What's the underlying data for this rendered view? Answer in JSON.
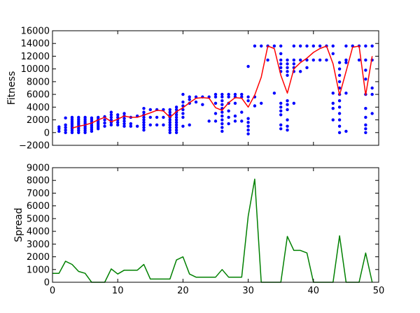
{
  "chart_data": [
    {
      "type": "scatter",
      "ylabel": "Fitness",
      "xlabel": "",
      "xlim": [
        0,
        50
      ],
      "ylim": [
        -2000,
        16000
      ],
      "yticks": [
        -2000,
        0,
        2000,
        4000,
        6000,
        8000,
        10000,
        12000,
        14000,
        16000
      ],
      "ytick_labels": [
        "−2000",
        "0",
        "2000",
        "4000",
        "6000",
        "8000",
        "10000",
        "12000",
        "14000",
        "16000"
      ],
      "grid": false,
      "colors": {
        "scatter": "#0000ff",
        "line": "#ff0000"
      },
      "scatter_columns": [
        {
          "x": 1,
          "values": [
            200,
            600,
            900
          ]
        },
        {
          "x": 2,
          "values": [
            0,
            400,
            800,
            1200,
            2300
          ]
        },
        {
          "x": 3,
          "values": [
            0,
            300,
            600,
            900,
            1200,
            1500,
            1800,
            2100,
            2400
          ]
        },
        {
          "x": 4,
          "values": [
            0,
            300,
            600,
            900,
            1200,
            1500,
            1800,
            2100,
            2400
          ]
        },
        {
          "x": 5,
          "values": [
            0,
            300,
            600,
            900,
            1200,
            1500,
            1800,
            2100,
            2400
          ]
        },
        {
          "x": 6,
          "values": [
            200,
            500,
            800,
            1100,
            1400,
            1700,
            2000,
            2300
          ]
        },
        {
          "x": 7,
          "values": [
            600,
            900,
            1200,
            1500,
            1800,
            2100,
            2400
          ]
        },
        {
          "x": 8,
          "values": [
            1000,
            1500,
            2000,
            2500
          ]
        },
        {
          "x": 9,
          "values": [
            1200,
            1600,
            2000,
            2400,
            2800,
            3200
          ]
        },
        {
          "x": 10,
          "values": [
            1200,
            1600,
            2000,
            2400,
            2800
          ]
        },
        {
          "x": 11,
          "values": [
            1000,
            1400,
            1800,
            2200,
            2600,
            3000
          ]
        },
        {
          "x": 12,
          "values": [
            1000,
            1400,
            2400
          ]
        },
        {
          "x": 13,
          "values": [
            1000,
            2600
          ]
        },
        {
          "x": 14,
          "values": [
            400,
            800,
            1200,
            1600,
            2000,
            2400,
            2800,
            3200,
            3800
          ]
        },
        {
          "x": 15,
          "values": [
            1200,
            2400,
            3600
          ]
        },
        {
          "x": 16,
          "values": [
            1200,
            2400,
            3600
          ]
        },
        {
          "x": 17,
          "values": [
            1200,
            2400,
            3600
          ]
        },
        {
          "x": 18,
          "values": [
            0,
            400,
            800,
            1200,
            1600,
            2000,
            2400,
            2800,
            3200,
            3600
          ]
        },
        {
          "x": 19,
          "values": [
            0,
            400,
            800,
            1200,
            1600,
            2000,
            2400,
            2800,
            3200,
            3600,
            4000
          ]
        },
        {
          "x": 20,
          "values": [
            1000,
            2400,
            3000,
            3600,
            4200,
            4800,
            6000
          ]
        },
        {
          "x": 21,
          "values": [
            1200,
            4600,
            5200,
            5600
          ]
        },
        {
          "x": 22,
          "values": [
            4800,
            5600
          ]
        },
        {
          "x": 23,
          "values": [
            4400,
            5600
          ]
        },
        {
          "x": 24,
          "values": [
            1800,
            5600
          ]
        },
        {
          "x": 25,
          "values": [
            1800,
            3000,
            4600,
            5600,
            6000
          ]
        },
        {
          "x": 26,
          "values": [
            200,
            800,
            1400,
            2000,
            2600,
            3200,
            3800,
            4400,
            5000,
            5600,
            6000
          ]
        },
        {
          "x": 27,
          "values": [
            1400,
            2400,
            3400,
            4600,
            5600,
            6000
          ]
        },
        {
          "x": 28,
          "values": [
            1800,
            2600,
            4600,
            5600,
            6000
          ]
        },
        {
          "x": 29,
          "values": [
            1800,
            3200,
            5600,
            6000
          ]
        },
        {
          "x": 30,
          "values": [
            -200,
            400,
            1000,
            1600,
            2200,
            5000,
            5600,
            10400
          ]
        },
        {
          "x": 31,
          "values": [
            4200,
            5600,
            13600
          ]
        },
        {
          "x": 32,
          "values": [
            4600,
            13600
          ]
        },
        {
          "x": 33,
          "values": [
            11400,
            13600
          ]
        },
        {
          "x": 34,
          "values": [
            6200,
            13600
          ]
        },
        {
          "x": 35,
          "values": [
            600,
            1200,
            2800,
            3400,
            4000,
            4600,
            9600,
            10200,
            10800,
            11400,
            12400,
            13600
          ]
        },
        {
          "x": 36,
          "values": [
            400,
            1000,
            2000,
            3600,
            4400,
            5000,
            9000,
            9600,
            10200,
            10800,
            11400
          ]
        },
        {
          "x": 37,
          "values": [
            4600,
            9600,
            10200,
            10800,
            11400,
            13600
          ]
        },
        {
          "x": 38,
          "values": [
            9600,
            11400,
            13600
          ]
        },
        {
          "x": 39,
          "values": [
            10200,
            11400,
            13600
          ]
        },
        {
          "x": 40,
          "values": [
            11400,
            13600
          ]
        },
        {
          "x": 41,
          "values": [
            11400,
            13600
          ]
        },
        {
          "x": 42,
          "values": [
            11400,
            13600
          ]
        },
        {
          "x": 43,
          "values": [
            2000,
            3800,
            4600,
            6200,
            12400,
            13600
          ]
        },
        {
          "x": 44,
          "values": [
            0,
            1000,
            2000,
            3000,
            4000,
            5000,
            6000,
            7000,
            8000,
            9000,
            10000,
            11000
          ]
        },
        {
          "x": 45,
          "values": [
            200,
            6200,
            11000,
            11400,
            13600
          ]
        },
        {
          "x": 46,
          "values": [
            13600
          ]
        },
        {
          "x": 47,
          "values": [
            11400,
            13600
          ]
        },
        {
          "x": 48,
          "values": [
            0,
            600,
            1200,
            2400,
            3800,
            6000,
            8400,
            9800,
            11400,
            13600
          ]
        },
        {
          "x": 49,
          "values": [
            3000,
            6000,
            7000,
            11400,
            13600
          ]
        }
      ],
      "mean_line": {
        "x": [
          3,
          4,
          5,
          6,
          7,
          8,
          9,
          10,
          11,
          12,
          13,
          15,
          16,
          17,
          18,
          19,
          20,
          21,
          22,
          23,
          24,
          25,
          26,
          27,
          28,
          29,
          30,
          31,
          32,
          33,
          34,
          35,
          36,
          37,
          38,
          39,
          40,
          41,
          42,
          43,
          44,
          45,
          46,
          47,
          48,
          49
        ],
        "y": [
          700,
          1000,
          1200,
          1500,
          2000,
          2400,
          1700,
          2100,
          2600,
          2400,
          2400,
          3100,
          3500,
          3400,
          2400,
          3300,
          3900,
          4700,
          5400,
          5500,
          5400,
          3900,
          3500,
          4700,
          5500,
          5400,
          4000,
          5900,
          8700,
          13600,
          13200,
          9000,
          6200,
          10000,
          11000,
          11700,
          12600,
          13200,
          13600,
          10800,
          5900,
          9600,
          13400,
          13600,
          5900,
          12000
        ]
      }
    },
    {
      "type": "line",
      "ylabel": "Spread",
      "xlabel": "",
      "xlim": [
        0,
        50
      ],
      "ylim": [
        0,
        9000
      ],
      "xticks": [
        0,
        10,
        20,
        30,
        40,
        50
      ],
      "xtick_labels": [
        "0",
        "10",
        "20",
        "30",
        "40",
        "50"
      ],
      "yticks": [
        0,
        1000,
        2000,
        3000,
        4000,
        5000,
        6000,
        7000,
        8000,
        9000
      ],
      "ytick_labels": [
        "0",
        "1000",
        "2000",
        "3000",
        "4000",
        "5000",
        "6000",
        "7000",
        "8000",
        "9000"
      ],
      "grid": false,
      "colors": {
        "line": "#008000"
      },
      "series": [
        {
          "x": [
            0,
            1,
            2,
            3,
            4,
            5,
            6,
            7,
            8,
            9,
            10,
            11,
            12,
            13,
            14,
            15,
            16,
            17,
            18,
            19,
            20,
            21,
            22,
            23,
            24,
            25,
            26,
            27,
            28,
            29,
            30,
            31,
            32,
            33,
            34,
            35,
            36,
            37,
            38,
            39,
            40,
            41,
            42,
            43,
            44,
            45,
            46,
            47,
            48,
            49
          ],
          "values": [
            700,
            700,
            1650,
            1400,
            850,
            700,
            0,
            0,
            0,
            1050,
            650,
            950,
            950,
            950,
            1400,
            250,
            250,
            250,
            250,
            1750,
            2000,
            650,
            400,
            400,
            400,
            400,
            1000,
            400,
            400,
            400,
            5200,
            8100,
            0,
            0,
            0,
            0,
            3600,
            2500,
            2500,
            2300,
            0,
            0,
            0,
            0,
            3650,
            0,
            0,
            0,
            2300,
            0
          ]
        }
      ]
    }
  ]
}
